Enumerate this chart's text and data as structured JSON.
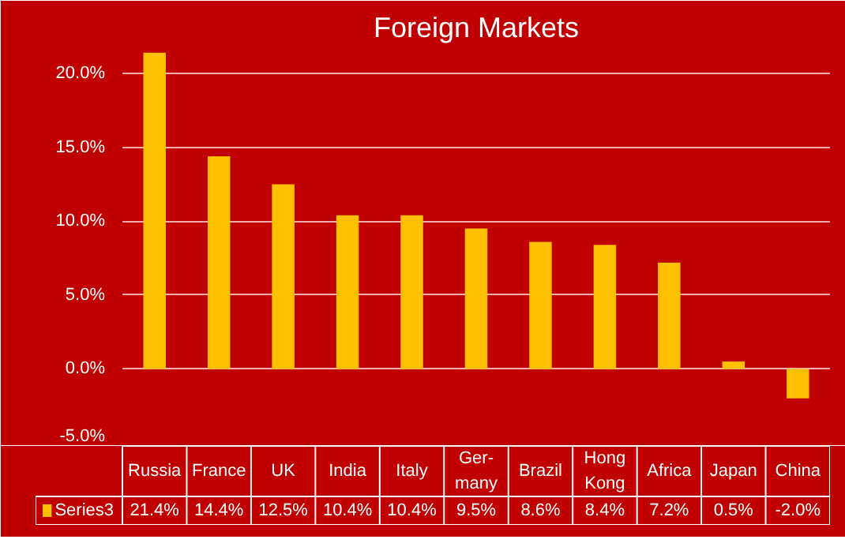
{
  "chart_data": {
    "type": "bar",
    "title": "Foreign Markets",
    "categories": [
      "Russia",
      "France",
      "UK",
      "India",
      "Italy",
      "Ger-\nmany",
      "Brazil",
      "Hong\nKong",
      "Africa",
      "Japan",
      "China"
    ],
    "series": [
      {
        "name": "Series3",
        "color": "#ffc000",
        "values": [
          21.4,
          14.4,
          12.5,
          10.4,
          10.4,
          9.5,
          8.6,
          8.4,
          7.2,
          0.5,
          -2.0
        ],
        "value_labels": [
          "21.4%",
          "14.4%",
          "12.5%",
          "10.4%",
          "10.4%",
          "9.5%",
          "8.6%",
          "8.4%",
          "7.2%",
          "0.5%",
          "-2.0%"
        ]
      }
    ],
    "ylim": [
      -5,
      21.5
    ],
    "yticks": [
      {
        "value": -5,
        "label": "-5.0%"
      },
      {
        "value": 0,
        "label": "0.0%"
      },
      {
        "value": 5,
        "label": "5.0%"
      },
      {
        "value": 10,
        "label": "10.0%"
      },
      {
        "value": 15,
        "label": "15.0%"
      },
      {
        "value": 20,
        "label": "20.0%"
      }
    ],
    "grid": "y"
  }
}
